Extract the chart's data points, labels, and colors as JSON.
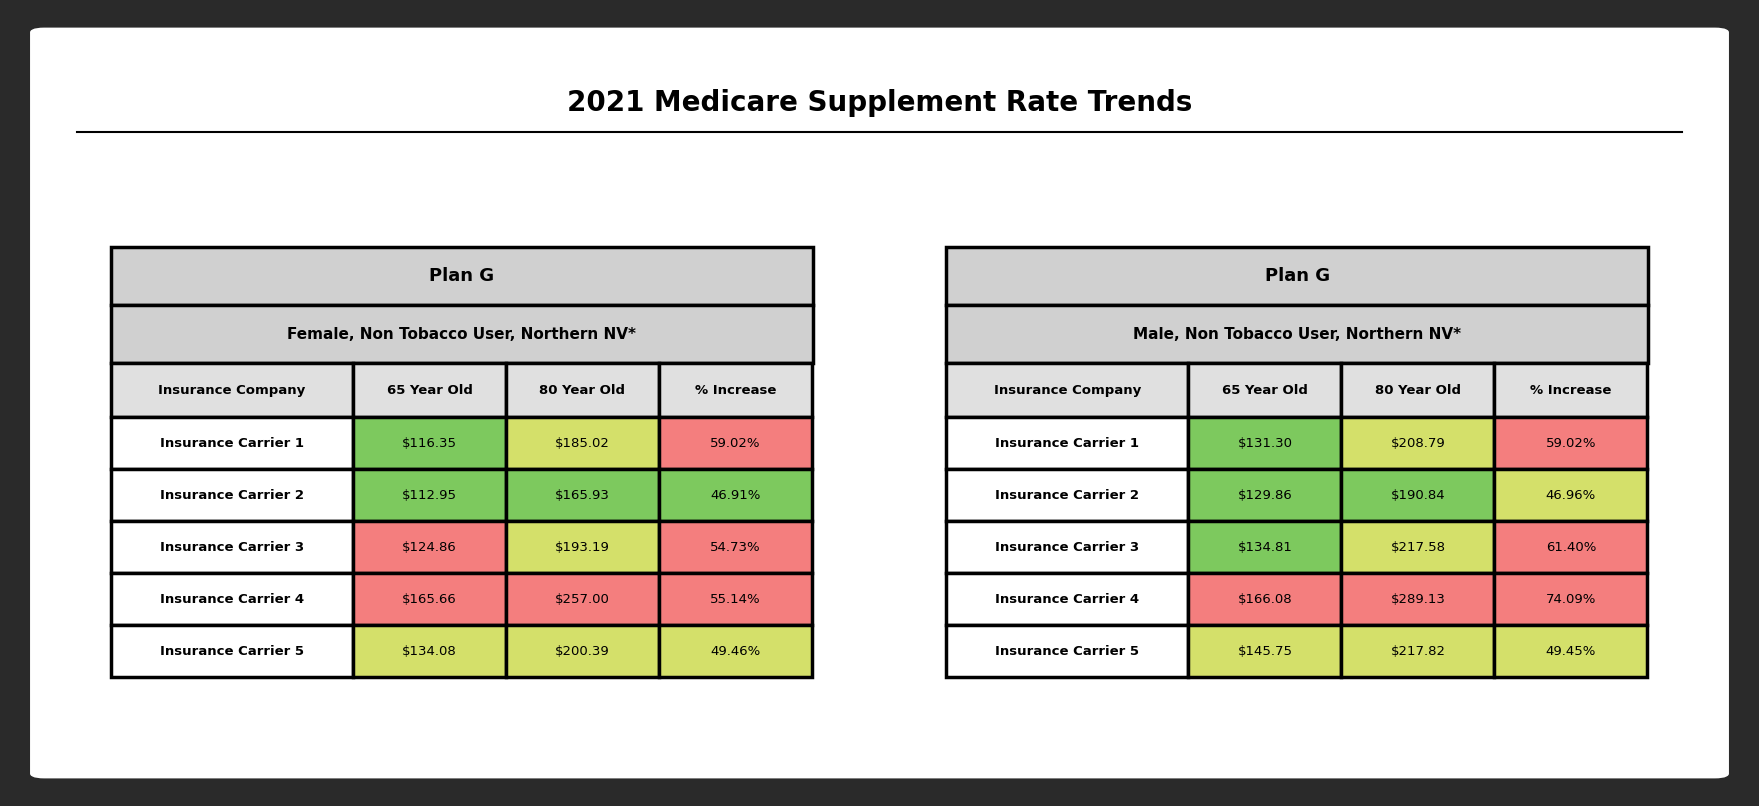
{
  "title": "2021 Medicare Supplement Rate Trends",
  "title_fontsize": 20,
  "bg_color": "#ffffff",
  "frame_color": "#2a2a2a",
  "table1": {
    "header1": "Plan G",
    "header2": "Female, Non Tobacco User, Northern NV*",
    "col_headers": [
      "Insurance Company",
      "65 Year Old",
      "80 Year Old",
      "% Increase"
    ],
    "rows": [
      [
        "Insurance Carrier 1",
        "$116.35",
        "$185.02",
        "59.02%"
      ],
      [
        "Insurance Carrier 2",
        "$112.95",
        "$165.93",
        "46.91%"
      ],
      [
        "Insurance Carrier 3",
        "$124.86",
        "$193.19",
        "54.73%"
      ],
      [
        "Insurance Carrier 4",
        "$165.66",
        "$257.00",
        "55.14%"
      ],
      [
        "Insurance Carrier 5",
        "$134.08",
        "$200.39",
        "49.46%"
      ]
    ],
    "cell_colors": [
      [
        "#ffffff",
        "#7DC95E",
        "#D4E06A",
        "#F47E7E"
      ],
      [
        "#ffffff",
        "#7DC95E",
        "#7DC95E",
        "#7DC95E"
      ],
      [
        "#ffffff",
        "#F47E7E",
        "#D4E06A",
        "#F47E7E"
      ],
      [
        "#ffffff",
        "#F47E7E",
        "#F47E7E",
        "#F47E7E"
      ],
      [
        "#ffffff",
        "#D4E06A",
        "#D4E06A",
        "#D4E06A"
      ]
    ]
  },
  "table2": {
    "header1": "Plan G",
    "header2": "Male, Non Tobacco User, Northern NV*",
    "col_headers": [
      "Insurance Company",
      "65 Year Old",
      "80 Year Old",
      "% Increase"
    ],
    "rows": [
      [
        "Insurance Carrier 1",
        "$131.30",
        "$208.79",
        "59.02%"
      ],
      [
        "Insurance Carrier 2",
        "$129.86",
        "$190.84",
        "46.96%"
      ],
      [
        "Insurance Carrier 3",
        "$134.81",
        "$217.58",
        "61.40%"
      ],
      [
        "Insurance Carrier 4",
        "$166.08",
        "$289.13",
        "74.09%"
      ],
      [
        "Insurance Carrier 5",
        "$145.75",
        "$217.82",
        "49.45%"
      ]
    ],
    "cell_colors": [
      [
        "#ffffff",
        "#7DC95E",
        "#D4E06A",
        "#F47E7E"
      ],
      [
        "#ffffff",
        "#7DC95E",
        "#7DC95E",
        "#D4E06A"
      ],
      [
        "#ffffff",
        "#7DC95E",
        "#D4E06A",
        "#F47E7E"
      ],
      [
        "#ffffff",
        "#F47E7E",
        "#F47E7E",
        "#F47E7E"
      ],
      [
        "#ffffff",
        "#D4E06A",
        "#D4E06A",
        "#D4E06A"
      ]
    ]
  }
}
